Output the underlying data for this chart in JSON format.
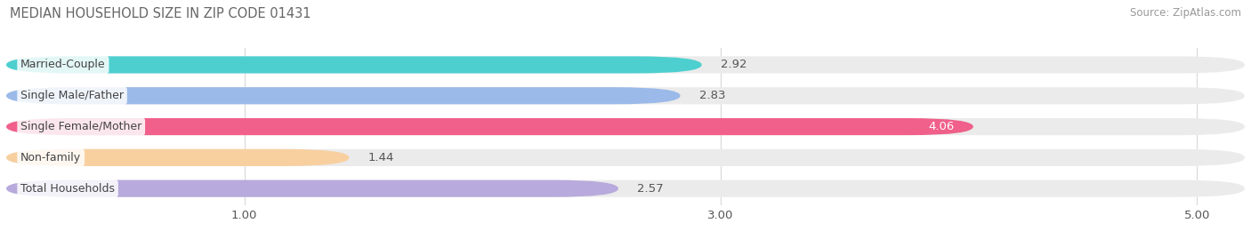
{
  "title": "MEDIAN HOUSEHOLD SIZE IN ZIP CODE 01431",
  "source": "Source: ZipAtlas.com",
  "categories": [
    "Married-Couple",
    "Single Male/Father",
    "Single Female/Mother",
    "Non-family",
    "Total Households"
  ],
  "values": [
    2.92,
    2.83,
    4.06,
    1.44,
    2.57
  ],
  "bar_colors": [
    "#4ECFCF",
    "#9BBAEA",
    "#F0608A",
    "#F8D0A0",
    "#B8AADC"
  ],
  "bar_bg_color": "#EBEBEB",
  "xmin": 0,
  "xmax": 5.2,
  "xlim_display": 5.0,
  "xticks": [
    1.0,
    3.0,
    5.0
  ],
  "label_fontsize": 9.5,
  "title_fontsize": 10.5,
  "source_fontsize": 8.5,
  "value_color_dark": "#555555",
  "value_color_white": "#FFFFFF",
  "background_color": "#FFFFFF",
  "grid_color": "#D8D8D8",
  "bar_height": 0.55,
  "bar_gap": 0.45
}
